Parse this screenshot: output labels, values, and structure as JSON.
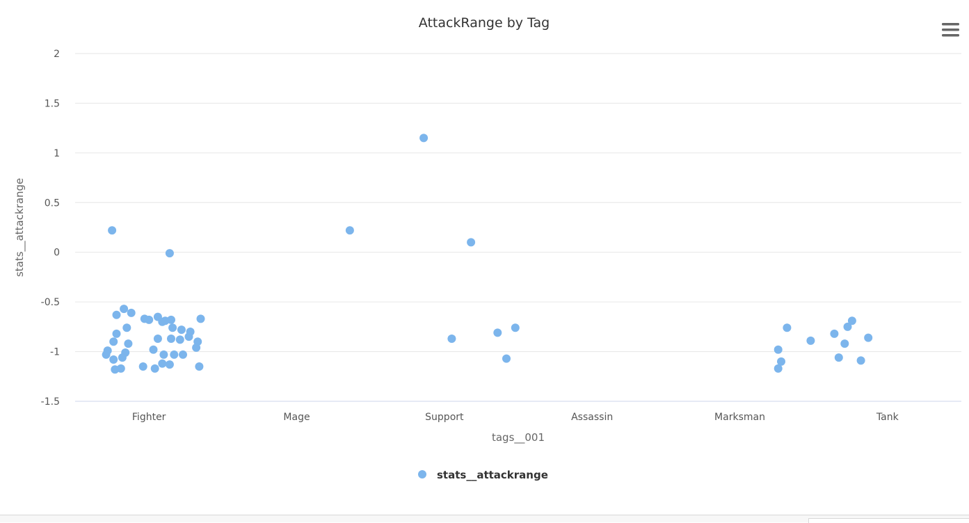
{
  "chart_data": {
    "type": "scatter",
    "title": "AttackRange by Tag",
    "xlabel": "tags__001",
    "ylabel": "stats__attackrange",
    "categories": [
      "Fighter",
      "Mage",
      "Support",
      "Assassin",
      "Marksman",
      "Tank"
    ],
    "ylim": [
      -1.5,
      2
    ],
    "yticks": [
      "2",
      "1.5",
      "1",
      "0.5",
      "0",
      "-0.5",
      "-1",
      "-1.5"
    ],
    "grid": true,
    "legend_position": "bottom-center",
    "series": [
      {
        "name": "stats__attackrange",
        "color": "#7cb5ec",
        "points": [
          {
            "x": -0.25,
            "y": 0.22
          },
          {
            "x": 0.14,
            "y": -0.01
          },
          {
            "x": -0.22,
            "y": -0.63
          },
          {
            "x": -0.17,
            "y": -0.57
          },
          {
            "x": -0.12,
            "y": -0.61
          },
          {
            "x": -0.22,
            "y": -0.82
          },
          {
            "x": -0.15,
            "y": -0.76
          },
          {
            "x": -0.24,
            "y": -0.9
          },
          {
            "x": -0.14,
            "y": -0.92
          },
          {
            "x": -0.28,
            "y": -0.99
          },
          {
            "x": -0.29,
            "y": -1.03
          },
          {
            "x": -0.16,
            "y": -1.01
          },
          {
            "x": -0.24,
            "y": -1.08
          },
          {
            "x": -0.18,
            "y": -1.06
          },
          {
            "x": -0.23,
            "y": -1.18
          },
          {
            "x": -0.19,
            "y": -1.17
          },
          {
            "x": -0.03,
            "y": -0.67
          },
          {
            "x": 0.0,
            "y": -0.68
          },
          {
            "x": 0.06,
            "y": -0.65
          },
          {
            "x": 0.11,
            "y": -0.69
          },
          {
            "x": 0.15,
            "y": -0.68
          },
          {
            "x": 0.35,
            "y": -0.67
          },
          {
            "x": 0.09,
            "y": -0.7
          },
          {
            "x": 0.16,
            "y": -0.76
          },
          {
            "x": 0.22,
            "y": -0.78
          },
          {
            "x": 0.28,
            "y": -0.8
          },
          {
            "x": 0.06,
            "y": -0.87
          },
          {
            "x": 0.15,
            "y": -0.87
          },
          {
            "x": 0.21,
            "y": -0.88
          },
          {
            "x": 0.27,
            "y": -0.85
          },
          {
            "x": 0.33,
            "y": -0.9
          },
          {
            "x": 0.03,
            "y": -0.98
          },
          {
            "x": 0.32,
            "y": -0.96
          },
          {
            "x": 0.1,
            "y": -1.03
          },
          {
            "x": 0.17,
            "y": -1.03
          },
          {
            "x": 0.23,
            "y": -1.03
          },
          {
            "x": 0.09,
            "y": -1.12
          },
          {
            "x": 0.14,
            "y": -1.13
          },
          {
            "x": -0.04,
            "y": -1.15
          },
          {
            "x": 0.04,
            "y": -1.17
          },
          {
            "x": 0.34,
            "y": -1.15
          },
          {
            "x": 1.36,
            "y": 0.22
          },
          {
            "x": 1.86,
            "y": 1.15
          },
          {
            "x": 2.05,
            "y": -0.87
          },
          {
            "x": 2.48,
            "y": -0.76
          },
          {
            "x": 2.42,
            "y": -1.07
          },
          {
            "x": 2.36,
            "y": -0.81
          },
          {
            "x": 2.18,
            "y": 0.1
          },
          {
            "x": 4.32,
            "y": -0.76
          },
          {
            "x": 4.26,
            "y": -0.98
          },
          {
            "x": 4.28,
            "y": -1.1
          },
          {
            "x": 4.26,
            "y": -1.17
          },
          {
            "x": 4.48,
            "y": -0.89
          },
          {
            "x": 4.64,
            "y": -0.82
          },
          {
            "x": 4.67,
            "y": -1.06
          },
          {
            "x": 4.71,
            "y": -0.92
          },
          {
            "x": 4.73,
            "y": -0.75
          },
          {
            "x": 4.76,
            "y": -0.69
          },
          {
            "x": 4.82,
            "y": -1.09
          },
          {
            "x": 4.87,
            "y": -0.86
          }
        ]
      }
    ]
  },
  "menu_icon": "hamburger-menu-icon"
}
